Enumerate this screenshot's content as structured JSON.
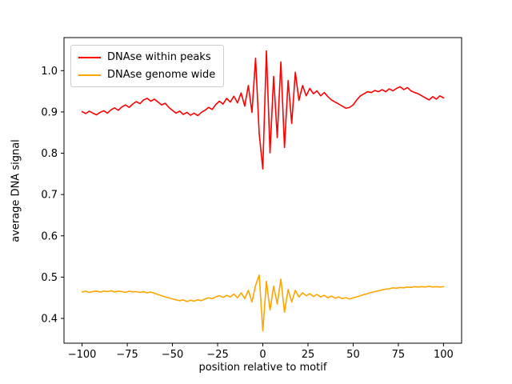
{
  "figure": {
    "background": "#ffffff"
  },
  "chart_data": {
    "type": "line",
    "title": "",
    "xlabel": "position relative to motif",
    "ylabel": "average DNA signal",
    "xlim": [
      -110,
      110
    ],
    "ylim": [
      0.34,
      1.08
    ],
    "x_ticks": [
      -100,
      -75,
      -50,
      -25,
      0,
      25,
      50,
      75,
      100
    ],
    "x_tick_labels": [
      "−100",
      "−75",
      "−50",
      "−25",
      "0",
      "25",
      "50",
      "75",
      "100"
    ],
    "y_ticks": [
      0.4,
      0.5,
      0.6,
      0.7,
      0.8,
      0.9,
      1.0
    ],
    "y_tick_labels": [
      "0.4",
      "0.5",
      "0.6",
      "0.7",
      "0.8",
      "0.9",
      "1.0"
    ],
    "grid": false,
    "legend": {
      "position": "upper left",
      "entries": [
        {
          "label": "DNAse within peaks",
          "color": "#ff0000"
        },
        {
          "label": "DNAse genome wide",
          "color": "#ffa500"
        }
      ]
    },
    "x": [
      -100,
      -98,
      -96,
      -94,
      -92,
      -90,
      -88,
      -86,
      -84,
      -82,
      -80,
      -78,
      -76,
      -74,
      -72,
      -70,
      -68,
      -66,
      -64,
      -62,
      -60,
      -58,
      -56,
      -54,
      -52,
      -50,
      -48,
      -46,
      -44,
      -42,
      -40,
      -38,
      -36,
      -34,
      -32,
      -30,
      -28,
      -26,
      -24,
      -22,
      -20,
      -18,
      -16,
      -14,
      -12,
      -10,
      -8,
      -6,
      -4,
      -2,
      0,
      2,
      4,
      6,
      8,
      10,
      12,
      14,
      16,
      18,
      20,
      22,
      24,
      26,
      28,
      30,
      32,
      34,
      36,
      38,
      40,
      42,
      44,
      46,
      48,
      50,
      52,
      54,
      56,
      58,
      60,
      62,
      64,
      66,
      68,
      70,
      72,
      74,
      76,
      78,
      80,
      82,
      84,
      86,
      88,
      90,
      92,
      94,
      96,
      98,
      100
    ],
    "series": [
      {
        "name": "DNAse within peaks",
        "color": "#ff0000",
        "values": [
          0.901,
          0.896,
          0.902,
          0.897,
          0.893,
          0.899,
          0.903,
          0.897,
          0.905,
          0.91,
          0.904,
          0.912,
          0.917,
          0.911,
          0.919,
          0.925,
          0.92,
          0.929,
          0.933,
          0.926,
          0.931,
          0.924,
          0.917,
          0.921,
          0.911,
          0.904,
          0.897,
          0.902,
          0.894,
          0.899,
          0.892,
          0.897,
          0.891,
          0.899,
          0.904,
          0.911,
          0.906,
          0.918,
          0.926,
          0.919,
          0.933,
          0.924,
          0.938,
          0.922,
          0.946,
          0.914,
          0.964,
          0.899,
          1.03,
          0.848,
          0.762,
          1.048,
          0.801,
          0.986,
          0.838,
          1.021,
          0.814,
          0.976,
          0.872,
          0.996,
          0.928,
          0.964,
          0.939,
          0.957,
          0.944,
          0.951,
          0.939,
          0.947,
          0.937,
          0.929,
          0.924,
          0.919,
          0.914,
          0.909,
          0.911,
          0.917,
          0.929,
          0.939,
          0.944,
          0.949,
          0.947,
          0.952,
          0.949,
          0.954,
          0.949,
          0.956,
          0.951,
          0.957,
          0.961,
          0.954,
          0.959,
          0.951,
          0.947,
          0.944,
          0.939,
          0.934,
          0.929,
          0.937,
          0.931,
          0.939,
          0.934
        ]
      },
      {
        "name": "DNAse genome wide",
        "color": "#ffa500",
        "values": [
          0.464,
          0.466,
          0.463,
          0.465,
          0.466,
          0.464,
          0.466,
          0.465,
          0.467,
          0.464,
          0.466,
          0.465,
          0.463,
          0.466,
          0.464,
          0.465,
          0.463,
          0.465,
          0.462,
          0.464,
          0.461,
          0.458,
          0.455,
          0.452,
          0.45,
          0.447,
          0.445,
          0.443,
          0.445,
          0.441,
          0.444,
          0.442,
          0.445,
          0.443,
          0.447,
          0.45,
          0.448,
          0.452,
          0.455,
          0.451,
          0.456,
          0.452,
          0.459,
          0.45,
          0.462,
          0.448,
          0.468,
          0.44,
          0.48,
          0.505,
          0.37,
          0.49,
          0.42,
          0.478,
          0.435,
          0.495,
          0.415,
          0.47,
          0.44,
          0.468,
          0.452,
          0.462,
          0.455,
          0.46,
          0.453,
          0.458,
          0.452,
          0.456,
          0.45,
          0.454,
          0.449,
          0.452,
          0.448,
          0.45,
          0.447,
          0.45,
          0.452,
          0.455,
          0.458,
          0.46,
          0.463,
          0.465,
          0.467,
          0.469,
          0.471,
          0.472,
          0.474,
          0.473,
          0.475,
          0.474,
          0.476,
          0.475,
          0.477,
          0.476,
          0.477,
          0.476,
          0.478,
          0.476,
          0.477,
          0.476,
          0.477
        ]
      }
    ]
  }
}
